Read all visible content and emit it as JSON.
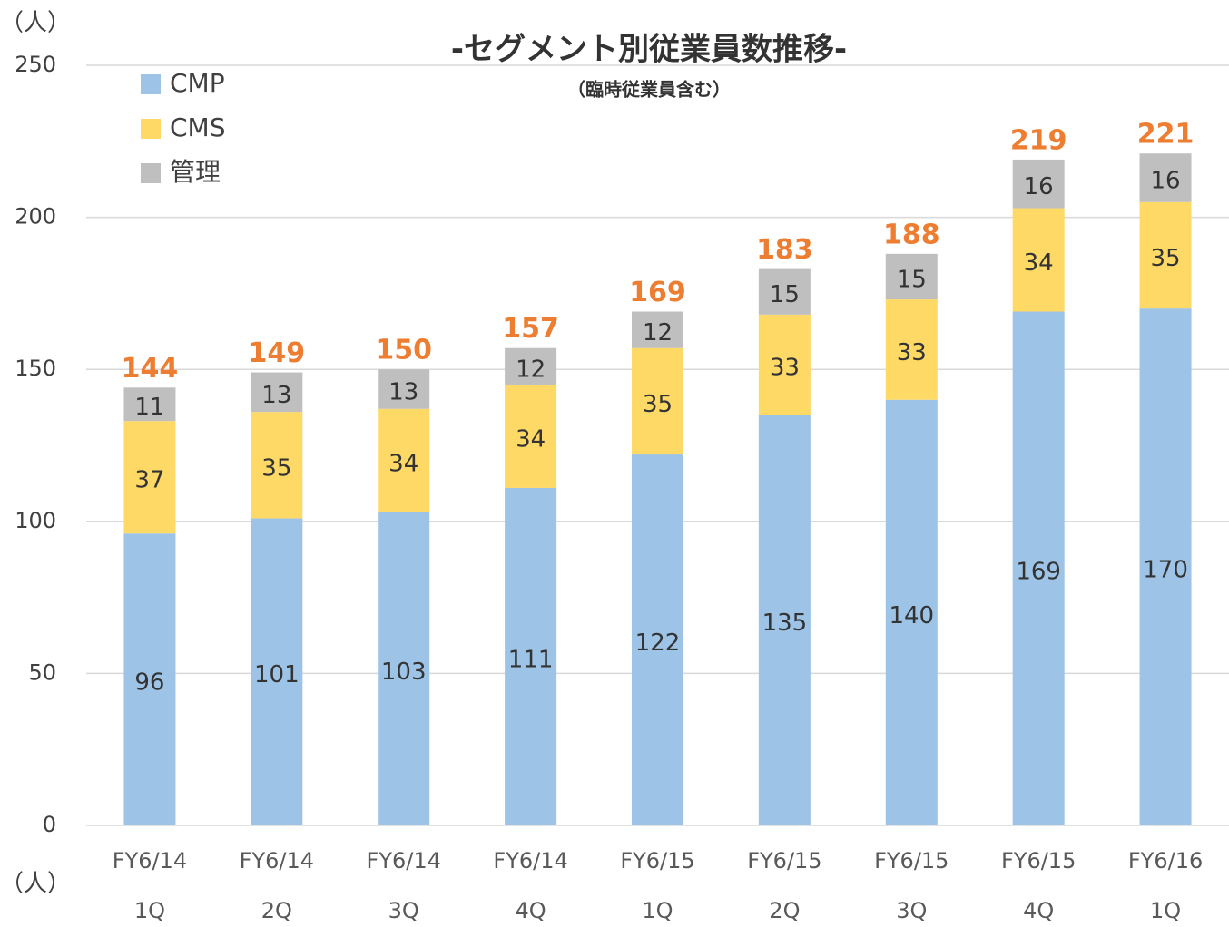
{
  "chart_data": {
    "type": "stacked_bar",
    "title": "-セグメント別従業員数推移-",
    "subtitle": "（臨時従業員含む）",
    "y_label": "（人）",
    "x_label": "（人）",
    "categories": [
      [
        "FY6/14",
        "1Q"
      ],
      [
        "FY6/14",
        "2Q"
      ],
      [
        "FY6/14",
        "3Q"
      ],
      [
        "FY6/14",
        "4Q"
      ],
      [
        "FY6/15",
        "1Q"
      ],
      [
        "FY6/15",
        "2Q"
      ],
      [
        "FY6/15",
        "3Q"
      ],
      [
        "FY6/15",
        "4Q"
      ],
      [
        "FY6/16",
        "1Q"
      ]
    ],
    "series": [
      {
        "name": "CMP",
        "color": "#9dc3e6",
        "values": [
          96,
          101,
          103,
          111,
          122,
          135,
          140,
          169,
          170
        ]
      },
      {
        "name": "CMS",
        "color": "#ffd966",
        "values": [
          37,
          35,
          34,
          34,
          35,
          33,
          33,
          34,
          35
        ]
      },
      {
        "name": "管理",
        "color": "#bfbfbf",
        "values": [
          11,
          13,
          13,
          12,
          12,
          15,
          15,
          16,
          16
        ]
      }
    ],
    "totals": [
      144,
      149,
      150,
      157,
      169,
      183,
      188,
      219,
      221
    ],
    "totals_color": "#ed7d31",
    "ylim": [
      0,
      250
    ],
    "yticks": [
      0,
      50,
      100,
      150,
      200,
      250
    ],
    "grid": true,
    "legend": "top-left"
  }
}
